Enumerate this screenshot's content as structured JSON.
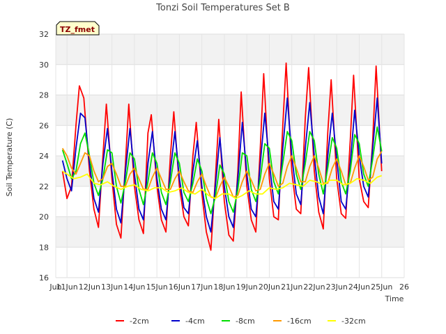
{
  "chart_data": {
    "type": "line",
    "title": "Tonzi Soil Temperatures Set B",
    "xlabel": "Time",
    "ylabel": "Soil Temperature (C)",
    "badge": "TZ_fmet",
    "xlim": [
      10.5,
      26.0
    ],
    "ylim": [
      16,
      32
    ],
    "x_ticks": [
      10.5,
      11,
      12,
      13,
      14,
      15,
      16,
      17,
      18,
      19,
      20,
      21,
      22,
      23,
      24,
      25,
      26
    ],
    "x_tick_labels": [
      "Jun",
      "11Jun",
      "12Jun",
      "13Jun",
      "14Jun",
      "15Jun",
      "16Jun",
      "17Jun",
      "18Jun",
      "19Jun",
      "20Jun",
      "21Jun",
      "22Jun",
      "23Jun",
      "24Jun",
      "25Jun",
      "26"
    ],
    "y_ticks": [
      16,
      18,
      20,
      22,
      24,
      26,
      28,
      30,
      32
    ],
    "grid": true,
    "legend_position": "bottom",
    "x_unit": "day of June",
    "series": [
      {
        "name": "-2cm",
        "color": "#ff0000",
        "x": [
          10.8,
          11.0,
          11.2,
          11.4,
          11.55,
          11.75,
          12.0,
          12.2,
          12.4,
          12.6,
          12.75,
          13.0,
          13.2,
          13.4,
          13.6,
          13.75,
          14.0,
          14.2,
          14.4,
          14.6,
          14.75,
          15.0,
          15.2,
          15.4,
          15.6,
          15.75,
          16.0,
          16.2,
          16.4,
          16.6,
          16.75,
          17.0,
          17.2,
          17.4,
          17.6,
          17.75,
          18.0,
          18.2,
          18.4,
          18.6,
          18.75,
          19.0,
          19.2,
          19.4,
          19.6,
          19.75,
          20.0,
          20.2,
          20.4,
          20.6,
          20.75,
          21.0,
          21.2,
          21.4,
          21.6,
          21.75,
          22.0,
          22.2,
          22.4,
          22.6,
          22.75,
          23.0,
          23.2,
          23.4,
          23.6,
          23.75,
          24.0,
          24.2,
          24.4,
          24.6,
          24.75,
          25.0
        ],
        "y": [
          23.0,
          21.2,
          22.0,
          26.0,
          28.6,
          27.8,
          23.0,
          20.5,
          19.3,
          24.0,
          27.4,
          22.5,
          19.5,
          18.6,
          23.5,
          27.4,
          22.0,
          19.8,
          18.9,
          25.5,
          26.7,
          22.0,
          19.8,
          19.0,
          24.0,
          26.9,
          22.0,
          20.0,
          19.4,
          24.0,
          26.2,
          21.5,
          19.0,
          17.8,
          22.5,
          26.4,
          21.0,
          18.8,
          18.4,
          23.0,
          28.2,
          22.0,
          19.8,
          19.0,
          24.5,
          29.4,
          22.5,
          20.0,
          19.8,
          26.0,
          30.1,
          23.0,
          20.5,
          20.2,
          26.5,
          29.8,
          23.0,
          20.3,
          19.2,
          25.5,
          29.0,
          22.5,
          20.2,
          19.9,
          25.0,
          29.3,
          22.5,
          21.0,
          20.6,
          25.0,
          29.9,
          23.0
        ]
      },
      {
        "name": "-4cm",
        "color": "#0000cc",
        "x": [
          10.8,
          11.0,
          11.2,
          11.4,
          11.6,
          11.8,
          12.0,
          12.2,
          12.4,
          12.6,
          12.8,
          13.0,
          13.2,
          13.4,
          13.6,
          13.8,
          14.0,
          14.2,
          14.4,
          14.6,
          14.8,
          15.0,
          15.2,
          15.4,
          15.6,
          15.8,
          16.0,
          16.2,
          16.4,
          16.6,
          16.8,
          17.0,
          17.2,
          17.4,
          17.6,
          17.8,
          18.0,
          18.2,
          18.4,
          18.6,
          18.8,
          19.0,
          19.2,
          19.4,
          19.6,
          19.8,
          20.0,
          20.2,
          20.4,
          20.6,
          20.8,
          21.0,
          21.2,
          21.4,
          21.6,
          21.8,
          22.0,
          22.2,
          22.4,
          22.6,
          22.8,
          23.0,
          23.2,
          23.4,
          23.6,
          23.8,
          24.0,
          24.2,
          24.4,
          24.6,
          24.8,
          25.0
        ],
        "y": [
          23.7,
          22.5,
          21.7,
          24.5,
          26.8,
          26.5,
          23.5,
          21.2,
          20.3,
          23.5,
          25.8,
          23.0,
          20.5,
          19.6,
          23.0,
          25.8,
          22.8,
          20.5,
          19.8,
          23.5,
          25.6,
          22.5,
          20.5,
          19.8,
          23.0,
          25.6,
          22.5,
          20.6,
          20.2,
          23.0,
          25.0,
          22.0,
          20.0,
          19.0,
          22.0,
          25.2,
          22.0,
          20.0,
          19.3,
          22.5,
          26.2,
          22.8,
          20.5,
          20.0,
          23.5,
          26.8,
          23.5,
          21.0,
          20.5,
          24.5,
          27.8,
          24.0,
          21.5,
          20.8,
          24.5,
          27.5,
          24.0,
          21.3,
          20.2,
          24.0,
          26.8,
          23.8,
          21.0,
          20.5,
          23.5,
          27.0,
          24.0,
          22.0,
          21.3,
          24.5,
          27.8,
          23.5
        ]
      },
      {
        "name": "-8cm",
        "color": "#00dd00",
        "x": [
          10.8,
          11.0,
          11.2,
          11.4,
          11.6,
          11.8,
          12.0,
          12.2,
          12.4,
          12.6,
          12.8,
          13.0,
          13.2,
          13.4,
          13.6,
          13.8,
          14.0,
          14.2,
          14.4,
          14.6,
          14.8,
          15.0,
          15.2,
          15.4,
          15.6,
          15.8,
          16.0,
          16.2,
          16.4,
          16.6,
          16.8,
          17.0,
          17.2,
          17.4,
          17.6,
          17.8,
          18.0,
          18.2,
          18.4,
          18.6,
          18.8,
          19.0,
          19.2,
          19.4,
          19.6,
          19.8,
          20.0,
          20.2,
          20.4,
          20.6,
          20.8,
          21.0,
          21.2,
          21.4,
          21.6,
          21.8,
          22.0,
          22.2,
          22.4,
          22.6,
          22.8,
          23.0,
          23.2,
          23.4,
          23.6,
          23.8,
          24.0,
          24.2,
          24.4,
          24.6,
          24.8,
          25.0
        ],
        "y": [
          24.4,
          23.5,
          22.5,
          23.0,
          24.8,
          25.5,
          24.0,
          22.2,
          21.4,
          22.5,
          24.4,
          24.2,
          22.0,
          20.9,
          22.3,
          24.2,
          23.8,
          21.8,
          20.8,
          22.3,
          24.2,
          23.5,
          21.6,
          20.8,
          22.3,
          24.2,
          23.5,
          21.6,
          21.0,
          22.2,
          23.8,
          23.0,
          21.2,
          20.2,
          21.3,
          23.4,
          22.8,
          21.0,
          20.3,
          21.8,
          24.2,
          24.0,
          21.8,
          21.0,
          22.5,
          24.8,
          24.5,
          22.3,
          21.5,
          23.5,
          25.6,
          25.0,
          22.8,
          21.8,
          23.5,
          25.6,
          25.0,
          22.8,
          21.5,
          23.2,
          25.2,
          24.5,
          22.3,
          21.5,
          23.0,
          25.4,
          24.8,
          22.8,
          22.0,
          23.8,
          25.9,
          24.3
        ]
      },
      {
        "name": "-16cm",
        "color": "#ff9900",
        "x": [
          10.8,
          11.0,
          11.2,
          11.4,
          11.6,
          11.8,
          12.0,
          12.2,
          12.4,
          12.6,
          12.8,
          13.0,
          13.2,
          13.4,
          13.6,
          13.8,
          14.0,
          14.2,
          14.4,
          14.6,
          14.8,
          15.0,
          15.2,
          15.4,
          15.6,
          15.8,
          16.0,
          16.2,
          16.4,
          16.6,
          16.8,
          17.0,
          17.2,
          17.4,
          17.6,
          17.8,
          18.0,
          18.2,
          18.4,
          18.6,
          18.8,
          19.0,
          19.2,
          19.4,
          19.6,
          19.8,
          20.0,
          20.2,
          20.4,
          20.6,
          20.8,
          21.0,
          21.2,
          21.4,
          21.6,
          21.8,
          22.0,
          22.2,
          22.4,
          22.6,
          22.8,
          23.0,
          23.2,
          23.4,
          23.6,
          23.8,
          24.0,
          24.2,
          24.4,
          24.6,
          24.8,
          25.0
        ],
        "y": [
          24.5,
          24.0,
          23.2,
          22.8,
          23.5,
          24.2,
          24.0,
          23.0,
          22.3,
          22.5,
          23.3,
          23.5,
          22.8,
          22.0,
          22.0,
          22.8,
          23.2,
          22.5,
          21.8,
          21.8,
          22.6,
          23.2,
          22.5,
          21.8,
          21.8,
          22.5,
          23.0,
          22.3,
          21.7,
          21.6,
          22.3,
          22.8,
          22.0,
          21.3,
          21.2,
          22.0,
          22.6,
          22.0,
          21.3,
          21.4,
          22.3,
          23.0,
          22.4,
          21.7,
          21.8,
          22.8,
          23.5,
          22.8,
          22.0,
          22.2,
          23.3,
          24.0,
          23.2,
          22.3,
          22.3,
          23.3,
          24.0,
          23.2,
          22.2,
          22.2,
          23.2,
          23.8,
          23.0,
          22.1,
          22.2,
          23.2,
          24.0,
          23.3,
          22.4,
          22.6,
          23.8,
          24.3
        ]
      },
      {
        "name": "-32cm",
        "color": "#ffff00",
        "x": [
          10.8,
          11.0,
          11.3,
          11.6,
          11.9,
          12.2,
          12.5,
          12.8,
          13.1,
          13.4,
          13.7,
          14.0,
          14.3,
          14.6,
          14.9,
          15.2,
          15.5,
          15.8,
          16.1,
          16.4,
          16.7,
          17.0,
          17.3,
          17.6,
          17.9,
          18.2,
          18.5,
          18.8,
          19.1,
          19.4,
          19.7,
          20.0,
          20.3,
          20.6,
          20.9,
          21.2,
          21.5,
          21.8,
          22.1,
          22.4,
          22.7,
          23.0,
          23.3,
          23.6,
          23.9,
          24.2,
          24.5,
          24.8,
          25.0
        ],
        "y": [
          23.0,
          22.8,
          22.5,
          22.6,
          22.8,
          22.2,
          22.1,
          22.3,
          22.0,
          21.8,
          22.0,
          22.1,
          21.8,
          21.7,
          21.9,
          21.9,
          21.6,
          21.7,
          21.9,
          21.6,
          21.5,
          21.8,
          21.4,
          21.2,
          21.5,
          21.5,
          21.2,
          21.4,
          21.7,
          21.5,
          21.5,
          21.9,
          21.8,
          21.9,
          22.2,
          22.1,
          22.0,
          22.4,
          22.3,
          22.1,
          22.4,
          22.4,
          22.1,
          22.2,
          22.5,
          22.4,
          22.2,
          22.6,
          22.7
        ]
      }
    ]
  }
}
